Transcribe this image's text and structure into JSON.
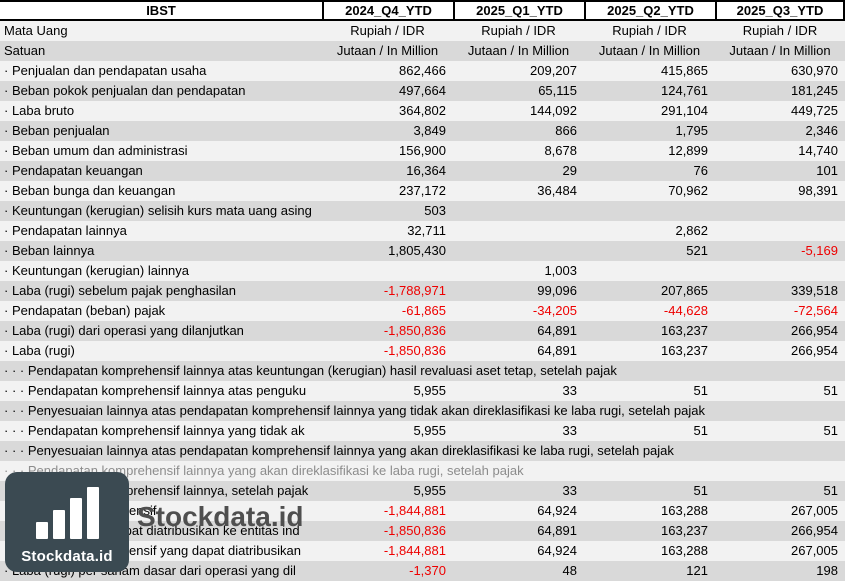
{
  "chart_data": {
    "type": "table",
    "corner_label": "IBST",
    "columns": [
      "2024_Q4_YTD",
      "2025_Q1_YTD",
      "2025_Q2_YTD",
      "2025_Q3_YTD"
    ],
    "rows": [
      {
        "label": "Mata Uang",
        "align": "center",
        "values": [
          "Rupiah / IDR",
          "Rupiah / IDR",
          "Rupiah / IDR",
          "Rupiah / IDR"
        ]
      },
      {
        "label": "Satuan",
        "align": "center",
        "values": [
          "Jutaan / In Million",
          "Jutaan / In Million",
          "Jutaan / In Million",
          "Jutaan / In Million"
        ]
      },
      {
        "label": "· Penjualan dan pendapatan usaha",
        "values": [
          "862,466",
          "209,207",
          "415,865",
          "630,970"
        ]
      },
      {
        "label": "· Beban pokok penjualan dan pendapatan",
        "values": [
          "497,664",
          "65,115",
          "124,761",
          "181,245"
        ]
      },
      {
        "label": "· Laba bruto",
        "values": [
          "364,802",
          "144,092",
          "291,104",
          "449,725"
        ]
      },
      {
        "label": "· Beban penjualan",
        "values": [
          "3,849",
          "866",
          "1,795",
          "2,346"
        ]
      },
      {
        "label": "· Beban umum dan administrasi",
        "values": [
          "156,900",
          "8,678",
          "12,899",
          "14,740"
        ]
      },
      {
        "label": "· Pendapatan keuangan",
        "values": [
          "16,364",
          "29",
          "76",
          "101"
        ]
      },
      {
        "label": "· Beban bunga dan keuangan",
        "values": [
          "237,172",
          "36,484",
          "70,962",
          "98,391"
        ]
      },
      {
        "label": "· Keuntungan (kerugian) selisih kurs mata uang asing",
        "values": [
          "503",
          "",
          "",
          ""
        ]
      },
      {
        "label": "· Pendapatan lainnya",
        "values": [
          "32,711",
          "",
          "2,862",
          ""
        ]
      },
      {
        "label": "· Beban lainnya",
        "values": [
          "1,805,430",
          "",
          "521",
          "-5,169"
        ]
      },
      {
        "label": "· Keuntungan (kerugian) lainnya",
        "values": [
          "",
          "1,003",
          "",
          ""
        ]
      },
      {
        "label": "· Laba (rugi) sebelum pajak penghasilan",
        "values": [
          "-1,788,971",
          "99,096",
          "207,865",
          "339,518"
        ]
      },
      {
        "label": "· Pendapatan (beban) pajak",
        "values": [
          "-61,865",
          "-34,205",
          "-44,628",
          "-72,564"
        ]
      },
      {
        "label": "· Laba (rugi) dari operasi yang dilanjutkan",
        "values": [
          "-1,850,836",
          "64,891",
          "163,237",
          "266,954"
        ]
      },
      {
        "label": "· Laba (rugi)",
        "values": [
          "-1,850,836",
          "64,891",
          "163,237",
          "266,954"
        ]
      },
      {
        "label": "· · · Pendapatan komprehensif lainnya atas keuntungan (kerugian) hasil revaluasi aset tetap, setelah pajak",
        "values": [
          "",
          "",
          "",
          ""
        ]
      },
      {
        "label": "· · · Pendapatan komprehensif lainnya atas penguku",
        "values": [
          "5,955",
          "33",
          "51",
          "51"
        ]
      },
      {
        "label": "· · · Penyesuaian lainnya atas pendapatan komprehensif lainnya yang tidak akan direklasifikasi ke laba rugi, setelah pajak",
        "values": [
          "",
          "",
          "",
          ""
        ]
      },
      {
        "label": "· · · Pendapatan komprehensif lainnya yang tidak ak",
        "values": [
          "5,955",
          "33",
          "51",
          "51"
        ]
      },
      {
        "label": "· · · Penyesuaian lainnya atas pendapatan komprehensif lainnya yang akan direklasifikasi ke laba rugi, setelah pajak",
        "values": [
          "",
          "",
          "",
          ""
        ]
      },
      {
        "label": "· · · Pendapatan komprehensif lainnya yang akan direklasifikasi ke laba rugi, setelah pajak",
        "muted": true,
        "values": [
          "",
          "",
          "",
          ""
        ]
      },
      {
        "label": "· · · Pendapatan komprehensif lainnya, setelah pajak",
        "values": [
          "5,955",
          "33",
          "51",
          "51"
        ]
      },
      {
        "label": "· Laba (rugi) komprehensif",
        "values": [
          "-1,844,881",
          "64,924",
          "163,288",
          "267,005"
        ]
      },
      {
        "label": "· Laba (rugi) yang dapat diatribusikan ke entitas ind",
        "values": [
          "-1,850,836",
          "64,891",
          "163,237",
          "266,954"
        ]
      },
      {
        "label": "· Laba (rugi) komprehensif yang dapat diatribusikan",
        "values": [
          "-1,844,881",
          "64,924",
          "163,288",
          "267,005"
        ]
      },
      {
        "label": "· Laba (rugi) per saham dasar dari operasi yang dil",
        "values": [
          "-1,370",
          "48",
          "121",
          "198"
        ]
      }
    ]
  },
  "watermark": {
    "brand": "Stockdata.id",
    "logo_text": "Stockdata.id"
  },
  "colors": {
    "text": "#000000",
    "negative": "#ee0000",
    "row_light": "#f2f2f2",
    "row_dark": "#d9d9d9",
    "header_bg": "#ffffff",
    "border": "#000000",
    "logo_bg": "#3b4a52",
    "logo_bars": "#ffffff",
    "logo_text_color": "#ffffff",
    "watermark_text": "#4f4f4f",
    "muted_text": "#8c8c8c"
  }
}
